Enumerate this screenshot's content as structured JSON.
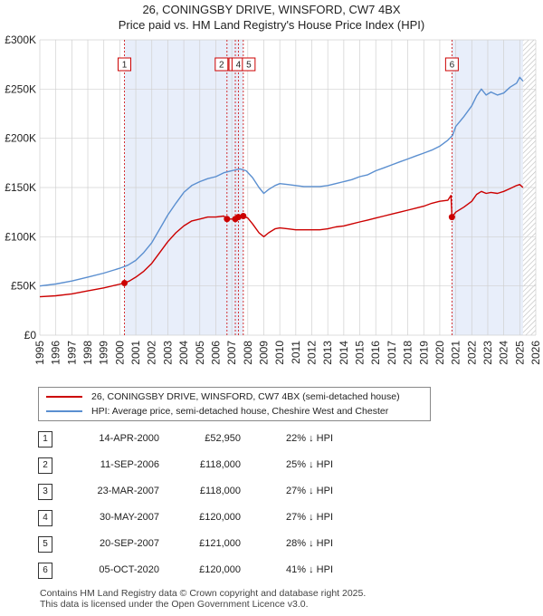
{
  "title": {
    "line1": "26, CONINGSBY DRIVE, WINSFORD, CW7 4BX",
    "line2": "Price paid vs. HM Land Registry's House Price Index (HPI)"
  },
  "colors": {
    "property": "#cc0000",
    "hpi": "#5b8fd0",
    "shade": "#e8eefa",
    "grid": "#d0d0d0",
    "vline": "#cc0000"
  },
  "legend": {
    "property_label": "26, CONINGSBY DRIVE, WINSFORD, CW7 4BX (semi-detached house)",
    "hpi_label": "HPI: Average price, semi-detached house, Cheshire West and Chester"
  },
  "transactions": [
    {
      "num": "1",
      "date": "14-APR-2000",
      "price": "£52,950",
      "hpi_diff": "22% ↓ HPI"
    },
    {
      "num": "2",
      "date": "11-SEP-2006",
      "price": "£118,000",
      "hpi_diff": "25% ↓ HPI"
    },
    {
      "num": "3",
      "date": "23-MAR-2007",
      "price": "£118,000",
      "hpi_diff": "27% ↓ HPI"
    },
    {
      "num": "4",
      "date": "30-MAY-2007",
      "price": "£120,000",
      "hpi_diff": "27% ↓ HPI"
    },
    {
      "num": "5",
      "date": "20-SEP-2007",
      "price": "£121,000",
      "hpi_diff": "28% ↓ HPI"
    },
    {
      "num": "6",
      "date": "05-OCT-2020",
      "price": "£120,000",
      "hpi_diff": "41% ↓ HPI"
    }
  ],
  "footer": {
    "line1": "Contains HM Land Registry data © Crown copyright and database right 2025.",
    "line2": "This data is licensed under the Open Government Licence v3.0."
  },
  "chart_data": {
    "type": "line",
    "xlim": [
      1995,
      2026
    ],
    "ylim": [
      0,
      300000
    ],
    "x_ticks": [
      "1995",
      "1996",
      "1997",
      "1998",
      "1999",
      "2000",
      "2001",
      "2002",
      "2003",
      "2004",
      "2005",
      "2006",
      "2007",
      "2008",
      "2009",
      "2010",
      "2011",
      "2012",
      "2013",
      "2014",
      "2015",
      "2016",
      "2017",
      "2018",
      "2019",
      "2020",
      "2021",
      "2022",
      "2023",
      "2024",
      "2025",
      "2026"
    ],
    "y_ticks": [
      {
        "value": 0,
        "label": "£0"
      },
      {
        "value": 50000,
        "label": "£50K"
      },
      {
        "value": 100000,
        "label": "£100K"
      },
      {
        "value": 150000,
        "label": "£150K"
      },
      {
        "value": 200000,
        "label": "£200K"
      },
      {
        "value": 250000,
        "label": "£250K"
      },
      {
        "value": 300000,
        "label": "£300K"
      }
    ],
    "shaded_spans": [
      [
        2000.29,
        2007.72
      ],
      [
        2020.76,
        2025.2
      ]
    ],
    "hatched_from": 2025.2,
    "markers": [
      {
        "label": "1",
        "x": 2000.29,
        "y": 52950
      },
      {
        "label": "2",
        "x": 2006.7,
        "y": 118000
      },
      {
        "label": "3",
        "x": 2007.22,
        "y": 118000
      },
      {
        "label": "4",
        "x": 2007.41,
        "y": 120000
      },
      {
        "label": "5",
        "x": 2007.72,
        "y": 121000
      },
      {
        "label": "6",
        "x": 2020.76,
        "y": 120000
      }
    ],
    "series": [
      {
        "name": "HPI: Average price, semi-detached house, Cheshire West and Chester",
        "x": [
          1995,
          1996,
          1997,
          1998,
          1999,
          2000,
          2000.5,
          2001,
          2001.5,
          2002,
          2002.5,
          2003,
          2003.5,
          2004,
          2004.5,
          2005,
          2005.5,
          2006,
          2006.5,
          2007,
          2007.5,
          2007.9,
          2008.3,
          2008.7,
          2009,
          2009.3,
          2009.7,
          2010,
          2010.5,
          2011,
          2011.5,
          2012,
          2012.5,
          2013,
          2013.5,
          2014,
          2014.5,
          2015,
          2015.5,
          2016,
          2016.5,
          2017,
          2017.5,
          2018,
          2018.5,
          2019,
          2019.5,
          2020,
          2020.5,
          2020.8,
          2021,
          2021.5,
          2022,
          2022.3,
          2022.6,
          2022.9,
          2023.2,
          2023.6,
          2024,
          2024.4,
          2024.8,
          2025,
          2025.2
        ],
        "y": [
          50000,
          52000,
          55000,
          59000,
          63000,
          68000,
          71000,
          76000,
          84000,
          94000,
          108000,
          122000,
          134000,
          145000,
          152000,
          156000,
          159000,
          161000,
          165000,
          167000,
          169000,
          167000,
          160000,
          150000,
          144000,
          148000,
          152000,
          154000,
          153000,
          152000,
          151000,
          151000,
          151000,
          152000,
          154000,
          156000,
          158000,
          161000,
          163000,
          167000,
          170000,
          173000,
          176000,
          179000,
          182000,
          185000,
          188000,
          192000,
          198000,
          203000,
          212000,
          222000,
          233000,
          243000,
          250000,
          244000,
          247000,
          244000,
          246000,
          252000,
          256000,
          262000,
          258000
        ]
      },
      {
        "name": "26, CONINGSBY DRIVE, WINSFORD, CW7 4BX (semi-detached house)",
        "x": [
          1995,
          1996,
          1997,
          1998,
          1999,
          2000.29,
          2000.6,
          2001,
          2001.5,
          2002,
          2002.5,
          2003,
          2003.5,
          2004,
          2004.5,
          2005,
          2005.5,
          2006,
          2006.5,
          2006.7,
          2007.22,
          2007.41,
          2007.72,
          2008,
          2008.3,
          2008.7,
          2009,
          2009.3,
          2009.7,
          2010,
          2010.5,
          2011,
          2011.5,
          2012,
          2012.5,
          2013,
          2013.5,
          2014,
          2014.5,
          2015,
          2015.5,
          2016,
          2016.5,
          2017,
          2017.5,
          2018,
          2018.5,
          2019,
          2019.5,
          2020,
          2020.5,
          2020.7,
          2020.76,
          2021,
          2021.5,
          2022,
          2022.3,
          2022.6,
          2022.9,
          2023.2,
          2023.6,
          2024,
          2024.4,
          2024.8,
          2025,
          2025.2
        ],
        "y": [
          39000,
          40000,
          42000,
          45000,
          48000,
          52950,
          55000,
          59000,
          65000,
          73000,
          84000,
          95000,
          104000,
          111000,
          116000,
          118000,
          120000,
          120000,
          121000,
          118000,
          118000,
          120000,
          121000,
          119000,
          113000,
          104000,
          100000,
          104000,
          108000,
          109000,
          108000,
          107000,
          107000,
          107000,
          107000,
          108000,
          110000,
          111000,
          113000,
          115000,
          117000,
          119000,
          121000,
          123000,
          125000,
          127000,
          129000,
          131000,
          134000,
          136000,
          137000,
          142000,
          120000,
          125000,
          130000,
          136000,
          143000,
          146000,
          144000,
          145000,
          144000,
          146000,
          149000,
          152000,
          153000,
          150000
        ]
      }
    ]
  }
}
